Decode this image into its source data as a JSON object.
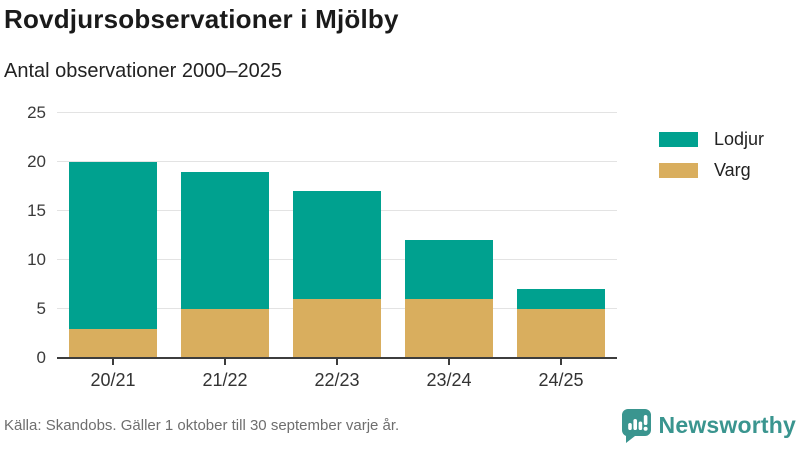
{
  "header": {
    "title": "Rovdjursobservationer i Mjölby",
    "subtitle": "Antal observationer 2000–2025"
  },
  "chart_data": {
    "type": "bar",
    "stacked": true,
    "title": "Rovdjursobservationer i Mjölby",
    "subtitle": "Antal observationer 2000–2025",
    "categories": [
      "20/21",
      "21/22",
      "22/23",
      "23/24",
      "24/25"
    ],
    "series": [
      {
        "name": "Lodjur",
        "color": "#00a18f",
        "values": [
          17,
          14,
          11,
          6,
          2
        ]
      },
      {
        "name": "Varg",
        "color": "#d9ae5e",
        "values": [
          3,
          5,
          6,
          6,
          5
        ]
      }
    ],
    "stack_totals": [
      20,
      19,
      17,
      12,
      7
    ],
    "xlabel": "",
    "ylabel": "",
    "ylim": [
      0,
      25
    ],
    "yticks": [
      0,
      5,
      10,
      15,
      20,
      25
    ],
    "grid": true,
    "legend_position": "right"
  },
  "legend": {
    "items": [
      {
        "label": "Lodjur",
        "color": "#00a18f"
      },
      {
        "label": "Varg",
        "color": "#d9ae5e"
      }
    ]
  },
  "footer": {
    "source": "Källa: Skandobs. Gäller 1 oktober till 30 september varje år.",
    "brand": "Newsworthy",
    "brand_icon": "bar-chart-speech-bubble-icon",
    "brand_color": "#3a958f"
  },
  "colors": {
    "lodjur": "#00a18f",
    "varg": "#d9ae5e",
    "gridline": "#e3e3e3",
    "axis": "#3d3d3d",
    "text_dark": "#1a1a1a",
    "text_muted": "#6e6e6e"
  }
}
